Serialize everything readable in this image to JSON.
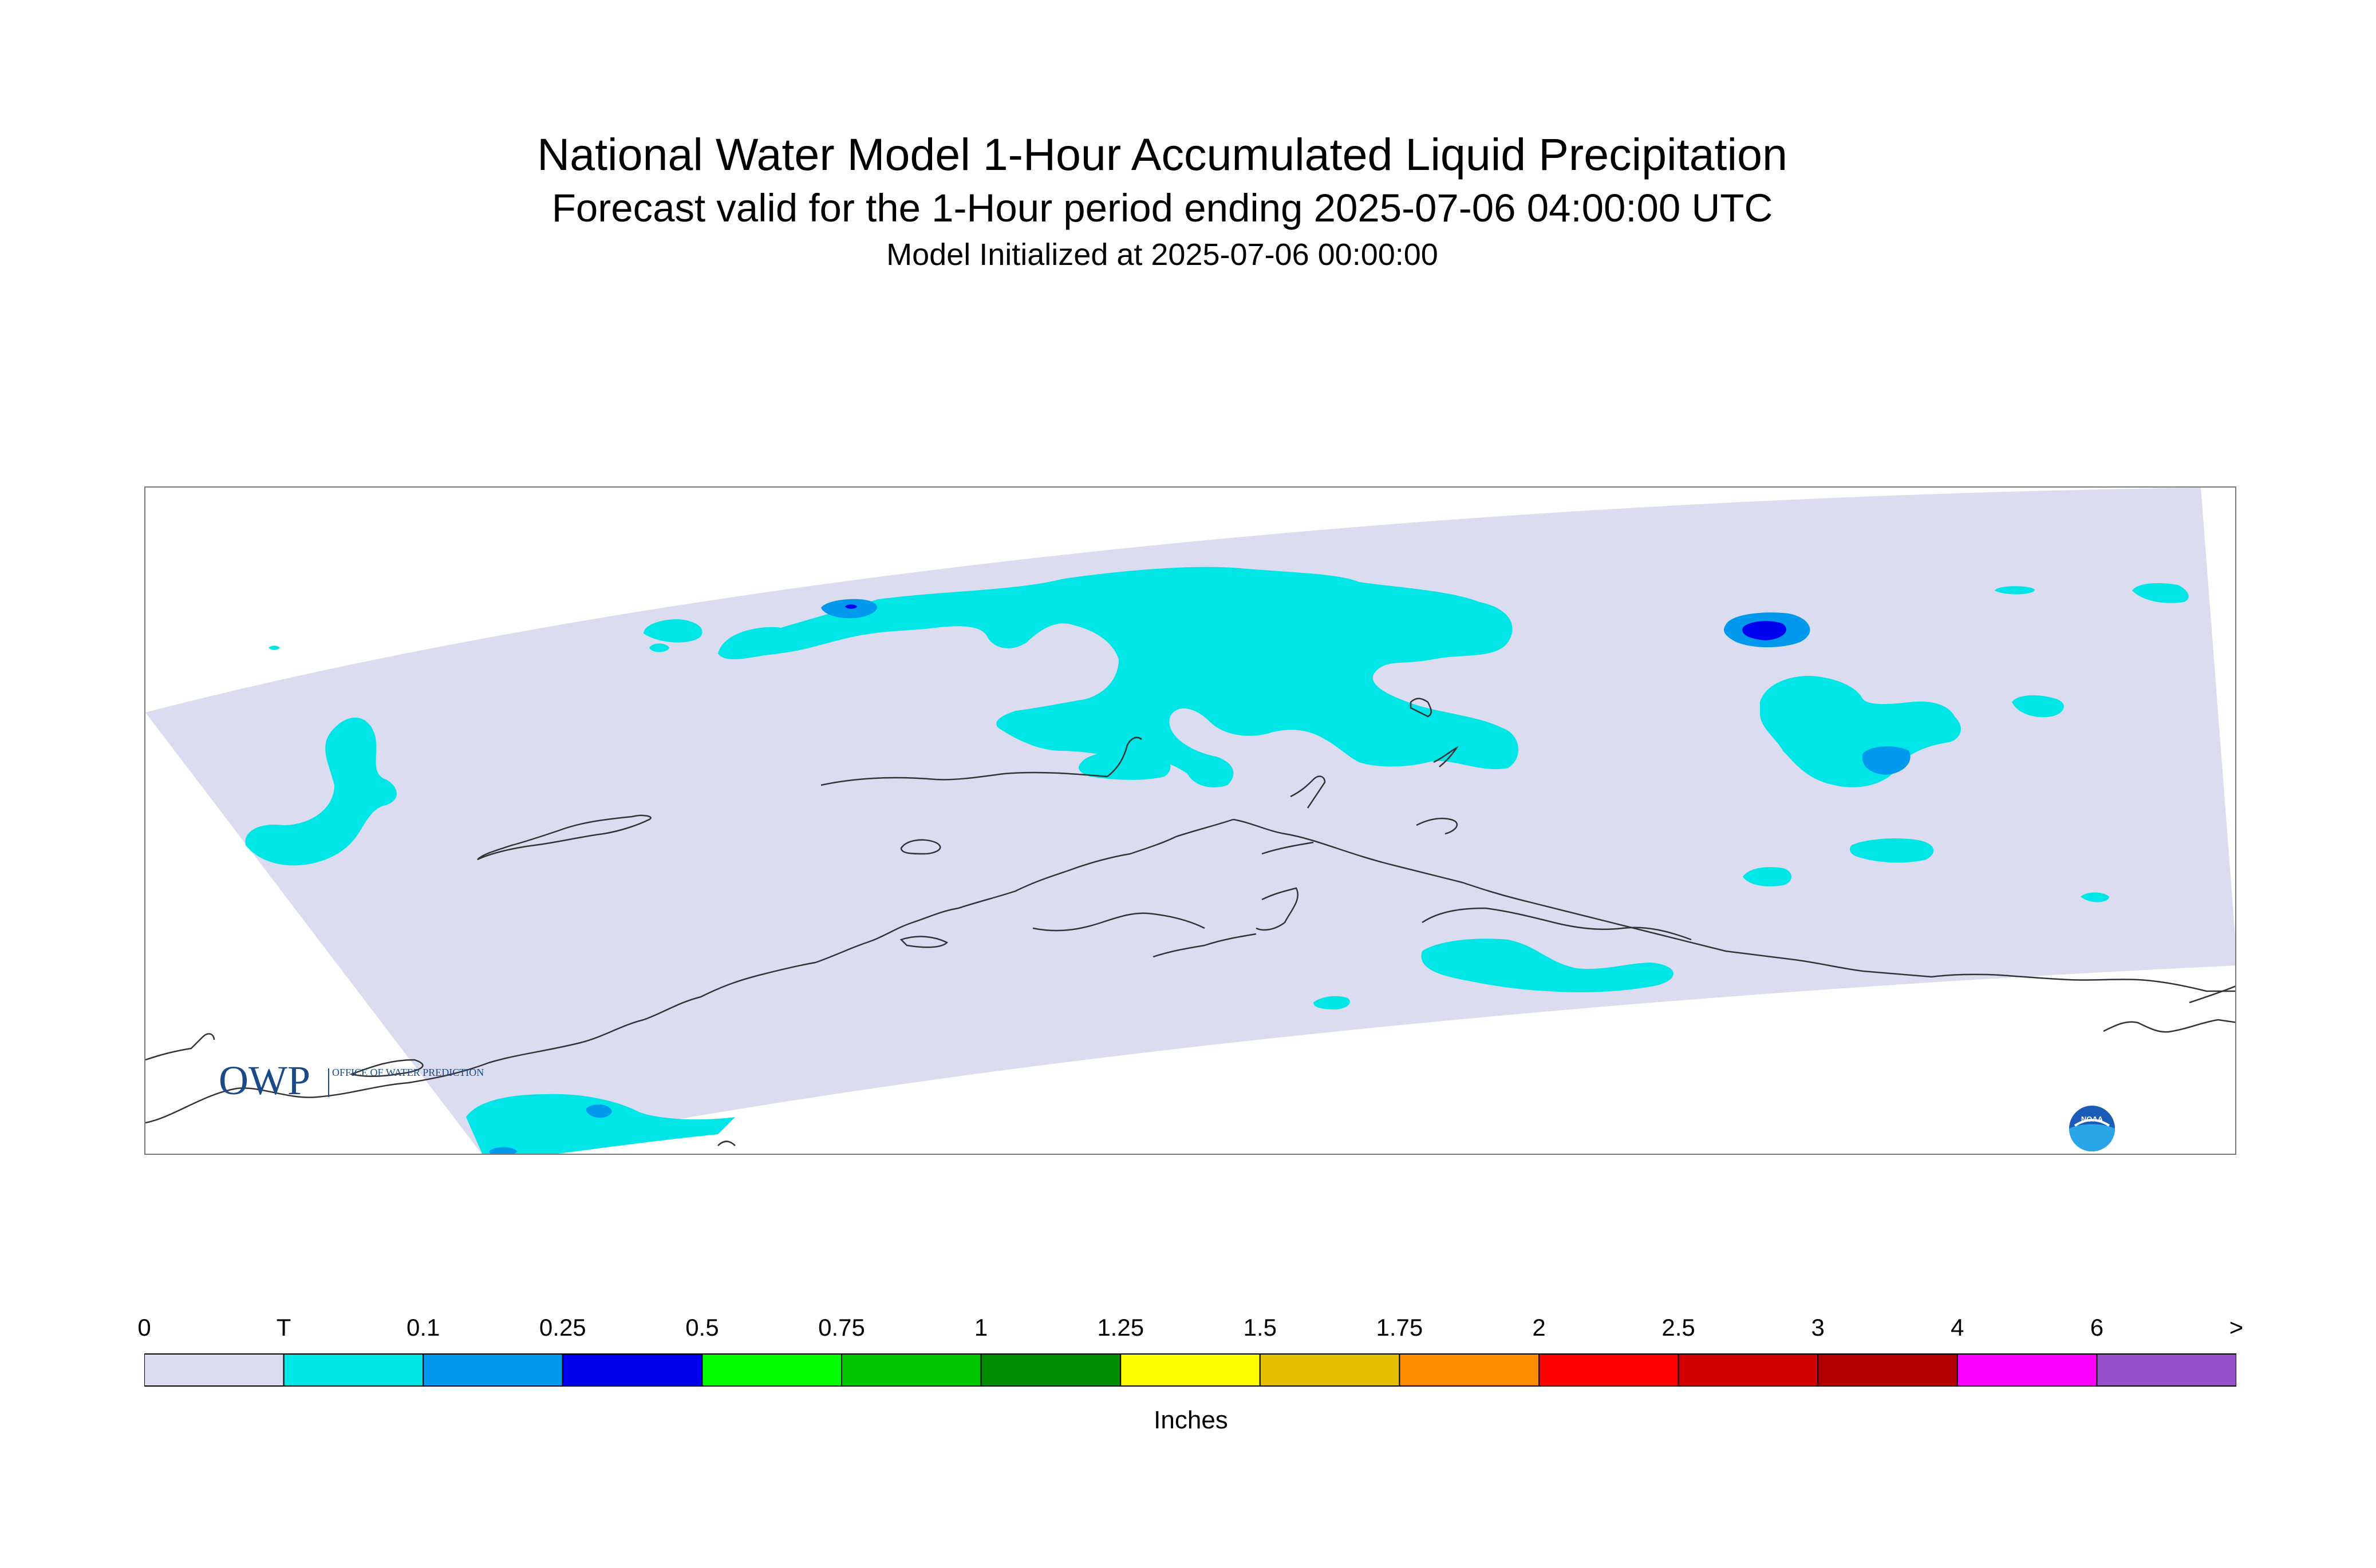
{
  "title": {
    "line1": "National Water Model 1-Hour Accumulated Liquid Precipitation",
    "line2": "Forecast valid for the 1-Hour period ending 2025-07-06 04:00:00 UTC",
    "line3": "Model Initialized at 2025-07-06 00:00:00"
  },
  "logos": {
    "owp_text": "OWP",
    "owp_sub": "OFFICE OF WATER PREDICTION",
    "noaa_text": "NOAA"
  },
  "legend": {
    "units": "Inches",
    "ticks": [
      "0",
      "T",
      "0.1",
      "0.25",
      "0.5",
      "0.75",
      "1",
      "1.25",
      "1.5",
      "1.75",
      "2",
      "2.5",
      "3",
      "4",
      "6",
      ">"
    ],
    "bins": [
      {
        "label": "0 - T",
        "color": "#dcdcf0"
      },
      {
        "label": "T - 0.1",
        "color": "#00e6e6"
      },
      {
        "label": "0.1 - 0.25",
        "color": "#0099ee"
      },
      {
        "label": "0.25 - 0.5",
        "color": "#0000f0"
      },
      {
        "label": "0.5 - 0.75",
        "color": "#00ff00"
      },
      {
        "label": "0.75 - 1",
        "color": "#00c800"
      },
      {
        "label": "1 - 1.25",
        "color": "#008c00"
      },
      {
        "label": "1.25 - 1.5",
        "color": "#ffff00"
      },
      {
        "label": "1.5 - 1.75",
        "color": "#e6be00"
      },
      {
        "label": "1.75 - 2",
        "color": "#ff8c00"
      },
      {
        "label": "2 - 2.5",
        "color": "#ff0000"
      },
      {
        "label": "2.5 - 3",
        "color": "#d20000"
      },
      {
        "label": "3 - 4",
        "color": "#b40000"
      },
      {
        "label": "4 - 6",
        "color": "#ff00ff"
      },
      {
        "label": "6 - >",
        "color": "#9650c8"
      }
    ]
  },
  "colors": {
    "domain_fill": "#dcdcf0",
    "trace": "#00e6e6",
    "light_blue": "#0099ee",
    "dark_blue": "#0000f0",
    "coastline": "#333333",
    "frame": "#7a7a7a"
  }
}
